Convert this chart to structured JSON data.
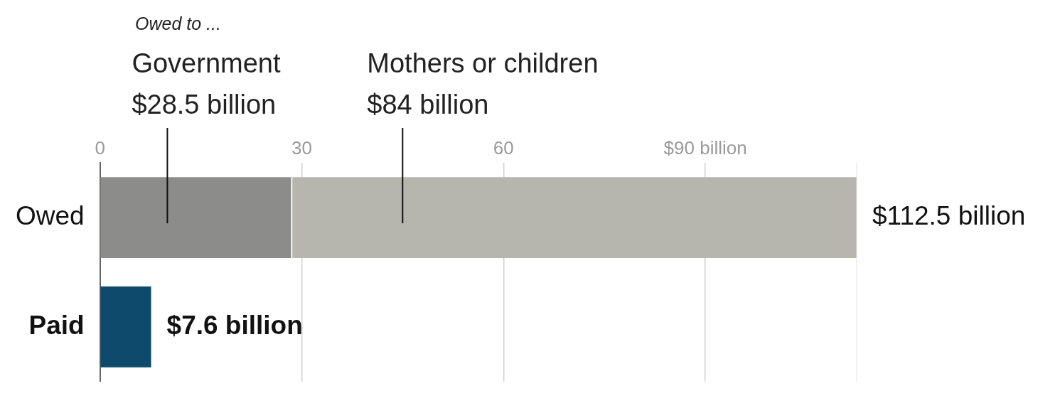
{
  "chart_data": {
    "type": "bar",
    "orientation": "horizontal",
    "stacked": true,
    "legend_title": "Owed to ...",
    "categories": [
      "Owed",
      "Paid"
    ],
    "series": [
      {
        "color": "#8c8c8a",
        "values": [
          28.5,
          null
        ],
        "value_labels": [
          "$28.5 billion",
          null
        ]
      },
      {
        "color": "#b6b6ae",
        "values": [
          84,
          null
        ],
        "value_labels": [
          "$84 billion",
          null
        ]
      },
      {
        "color": "#0d4a6b",
        "values": [
          null,
          7.6
        ]
      }
    ],
    "annotations": [
      "Government",
      "Mothers or children"
    ],
    "totals": [
      "$112.5 billion",
      "$7.6 billion"
    ],
    "xlim": [
      0,
      112.5
    ],
    "xticks": [
      0,
      30,
      60,
      {
        "value": 90,
        "label": "$90 billion"
      }
    ],
    "grid": "x",
    "legend": false
  }
}
